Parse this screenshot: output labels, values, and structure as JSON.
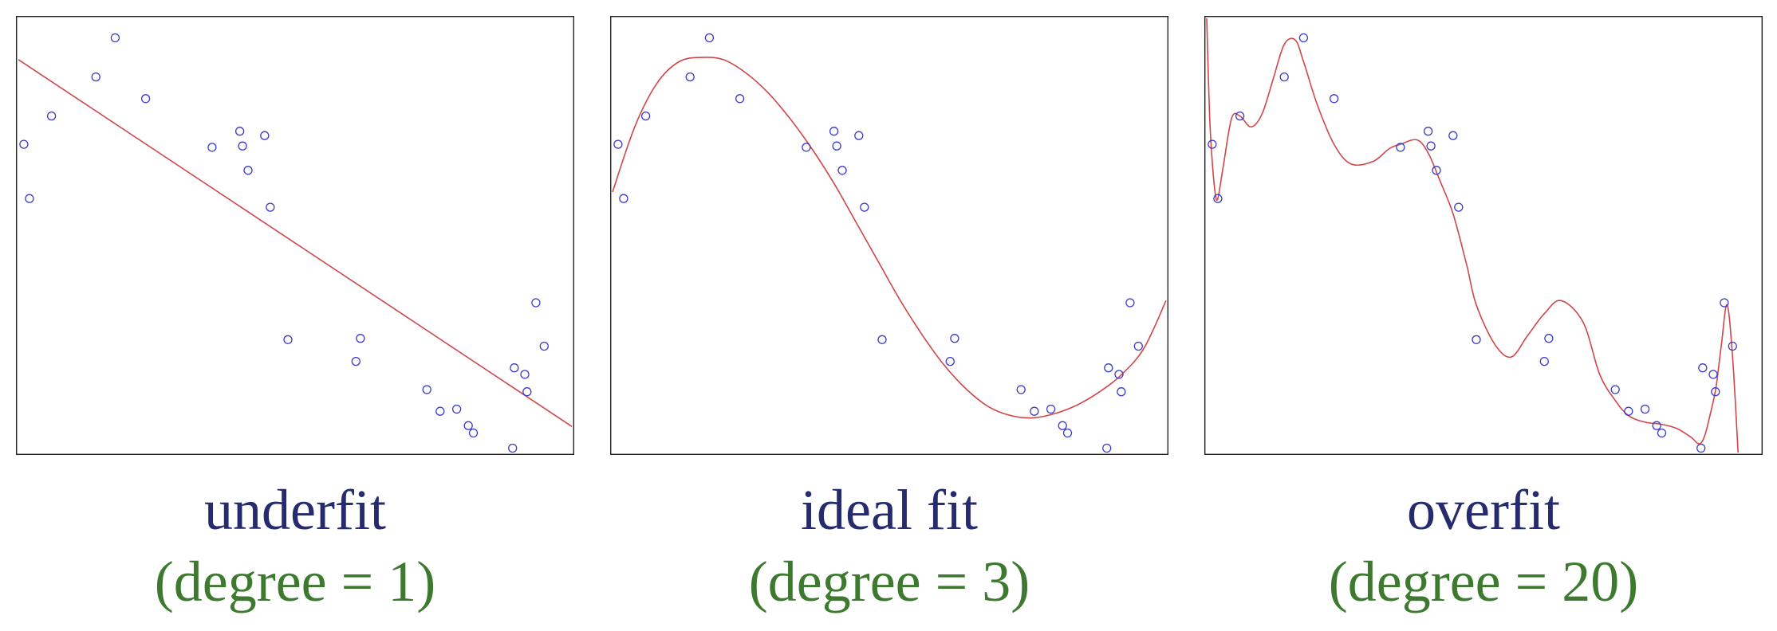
{
  "chart_data": [
    {
      "type": "scatter",
      "title": "underfit",
      "subtitle": "(degree = 1)",
      "xlabel": "",
      "ylabel": "",
      "xlim": [
        0,
        1
      ],
      "ylim": [
        0,
        1
      ],
      "grid": false,
      "series": [
        {
          "kind": "points",
          "x": [
            0.01,
            0.02,
            0.06,
            0.14,
            0.175,
            0.23,
            0.35,
            0.4,
            0.405,
            0.415,
            0.445,
            0.455,
            0.487,
            0.61,
            0.618,
            0.738,
            0.762,
            0.792,
            0.813,
            0.822,
            0.893,
            0.896,
            0.915,
            0.919,
            0.935,
            0.95
          ],
          "y": [
            0.71,
            0.585,
            0.775,
            0.865,
            0.955,
            0.815,
            0.703,
            0.74,
            0.706,
            0.65,
            0.73,
            0.565,
            0.26,
            0.21,
            0.263,
            0.145,
            0.095,
            0.1,
            0.062,
            0.045,
            0.01,
            0.195,
            0.18,
            0.14,
            0.345,
            0.245
          ]
        },
        {
          "kind": "fit",
          "degree": 1,
          "x": [
            0,
            1
          ],
          "y": [
            0.905,
            0.06
          ]
        }
      ]
    },
    {
      "type": "scatter",
      "title": "ideal fit",
      "subtitle": "(degree = 3)",
      "xlabel": "",
      "ylabel": "",
      "xlim": [
        0,
        1
      ],
      "ylim": [
        0,
        1
      ],
      "grid": false,
      "series": [
        {
          "kind": "points",
          "x": [
            0.01,
            0.02,
            0.06,
            0.14,
            0.175,
            0.23,
            0.35,
            0.4,
            0.405,
            0.415,
            0.445,
            0.455,
            0.487,
            0.61,
            0.618,
            0.738,
            0.762,
            0.792,
            0.813,
            0.822,
            0.893,
            0.896,
            0.915,
            0.919,
            0.935,
            0.95
          ],
          "y": [
            0.71,
            0.585,
            0.775,
            0.865,
            0.955,
            0.815,
            0.703,
            0.74,
            0.706,
            0.65,
            0.73,
            0.565,
            0.26,
            0.21,
            0.263,
            0.145,
            0.095,
            0.1,
            0.062,
            0.045,
            0.01,
            0.195,
            0.18,
            0.14,
            0.345,
            0.245
          ]
        },
        {
          "kind": "fit",
          "degree": 3,
          "x": [
            0.0,
            0.04,
            0.08,
            0.12,
            0.16,
            0.2,
            0.24,
            0.28,
            0.32,
            0.36,
            0.4,
            0.44,
            0.48,
            0.52,
            0.56,
            0.6,
            0.64,
            0.68,
            0.72,
            0.76,
            0.8,
            0.84,
            0.88,
            0.92,
            0.96,
            1.0
          ],
          "y": [
            0.6,
            0.75,
            0.85,
            0.9,
            0.91,
            0.905,
            0.875,
            0.83,
            0.77,
            0.7,
            0.62,
            0.53,
            0.44,
            0.35,
            0.27,
            0.2,
            0.145,
            0.105,
            0.085,
            0.08,
            0.09,
            0.11,
            0.14,
            0.18,
            0.24,
            0.35
          ]
        }
      ]
    },
    {
      "type": "scatter",
      "title": "overfit",
      "subtitle": "(degree = 20)",
      "xlabel": "",
      "ylabel": "",
      "xlim": [
        0,
        1
      ],
      "ylim": [
        0,
        1
      ],
      "grid": false,
      "series": [
        {
          "kind": "points",
          "x": [
            0.01,
            0.02,
            0.06,
            0.14,
            0.175,
            0.23,
            0.35,
            0.4,
            0.405,
            0.415,
            0.445,
            0.455,
            0.487,
            0.61,
            0.618,
            0.738,
            0.762,
            0.792,
            0.813,
            0.822,
            0.893,
            0.896,
            0.915,
            0.919,
            0.935,
            0.95
          ],
          "y": [
            0.71,
            0.585,
            0.775,
            0.865,
            0.955,
            0.815,
            0.703,
            0.74,
            0.706,
            0.65,
            0.73,
            0.565,
            0.26,
            0.21,
            0.263,
            0.145,
            0.095,
            0.1,
            0.062,
            0.045,
            0.01,
            0.195,
            0.18,
            0.14,
            0.345,
            0.245
          ]
        },
        {
          "kind": "fit",
          "degree": 20,
          "x": [
            0.0,
            0.005,
            0.01,
            0.015,
            0.02,
            0.03,
            0.045,
            0.06,
            0.08,
            0.1,
            0.12,
            0.14,
            0.16,
            0.175,
            0.2,
            0.23,
            0.26,
            0.3,
            0.33,
            0.35,
            0.38,
            0.4,
            0.42,
            0.445,
            0.47,
            0.487,
            0.52,
            0.55,
            0.58,
            0.61,
            0.64,
            0.68,
            0.71,
            0.738,
            0.762,
            0.792,
            0.822,
            0.85,
            0.875,
            0.89,
            0.9,
            0.91,
            0.92,
            0.93,
            0.94,
            0.95,
            0.96
          ],
          "y": [
            1.0,
            0.78,
            0.67,
            0.6,
            0.585,
            0.66,
            0.77,
            0.775,
            0.75,
            0.78,
            0.86,
            0.94,
            0.95,
            0.9,
            0.8,
            0.71,
            0.665,
            0.67,
            0.7,
            0.71,
            0.72,
            0.69,
            0.63,
            0.55,
            0.43,
            0.34,
            0.25,
            0.22,
            0.27,
            0.32,
            0.35,
            0.3,
            0.18,
            0.12,
            0.085,
            0.07,
            0.065,
            0.055,
            0.035,
            0.02,
            0.04,
            0.09,
            0.15,
            0.25,
            0.34,
            0.22,
            0.0
          ]
        }
      ]
    }
  ]
}
